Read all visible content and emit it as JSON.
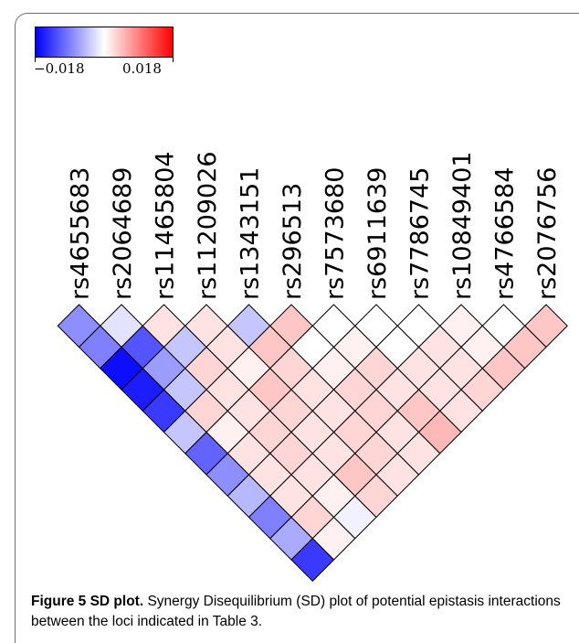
{
  "chart_data": {
    "type": "heatmap",
    "title": "",
    "loci": [
      "rs4655683",
      "rs2064689",
      "rs11465804",
      "rs11209026",
      "rs1343151",
      "rs296513",
      "rs7573680",
      "rs6911639",
      "rs7786745",
      "rs10849401",
      "rs4766584",
      "rs2076756"
    ],
    "colorbar": {
      "min": -0.018,
      "max": 0.018,
      "min_label": "−0.018",
      "max_label": "0.018",
      "colors": [
        "#0000ff",
        "#ffffff",
        "#ff0000"
      ]
    },
    "values": [
      [
        -0.008,
        -0.002,
        0.002,
        0.002,
        -0.004,
        0.004,
        0.0,
        0.0,
        0.0,
        0.001,
        0.0,
        0.004
      ],
      [
        -0.009,
        -0.012,
        -0.004,
        0.002,
        0.004,
        0.0,
        0.001,
        0.0,
        0.002,
        0.001,
        0.004
      ],
      [
        -0.017,
        -0.007,
        0.003,
        0.001,
        0.003,
        0.001,
        0.003,
        0.002,
        0.002,
        0.004
      ],
      [
        -0.016,
        -0.004,
        0.002,
        0.004,
        0.002,
        0.003,
        0.002,
        0.002,
        0.003
      ],
      [
        -0.014,
        0.003,
        0.002,
        0.003,
        0.002,
        0.003,
        0.004,
        0.002
      ],
      [
        -0.004,
        0.001,
        0.003,
        0.002,
        0.003,
        0.002,
        0.005
      ],
      [
        -0.011,
        0.002,
        0.003,
        0.002,
        0.003,
        0.002
      ],
      [
        -0.008,
        0.002,
        0.002,
        0.004,
        0.002
      ],
      [
        -0.005,
        0.002,
        0.001,
        0.003
      ],
      [
        -0.009,
        0.003,
        -0.001
      ],
      [
        -0.006,
        0.001
      ],
      [
        -0.014
      ]
    ]
  },
  "caption": {
    "label": "Figure 5 SD plot.",
    "text": "Synergy Disequilibrium (SD) plot of potential epistasis interactions between the loci indicated in Table 3."
  }
}
